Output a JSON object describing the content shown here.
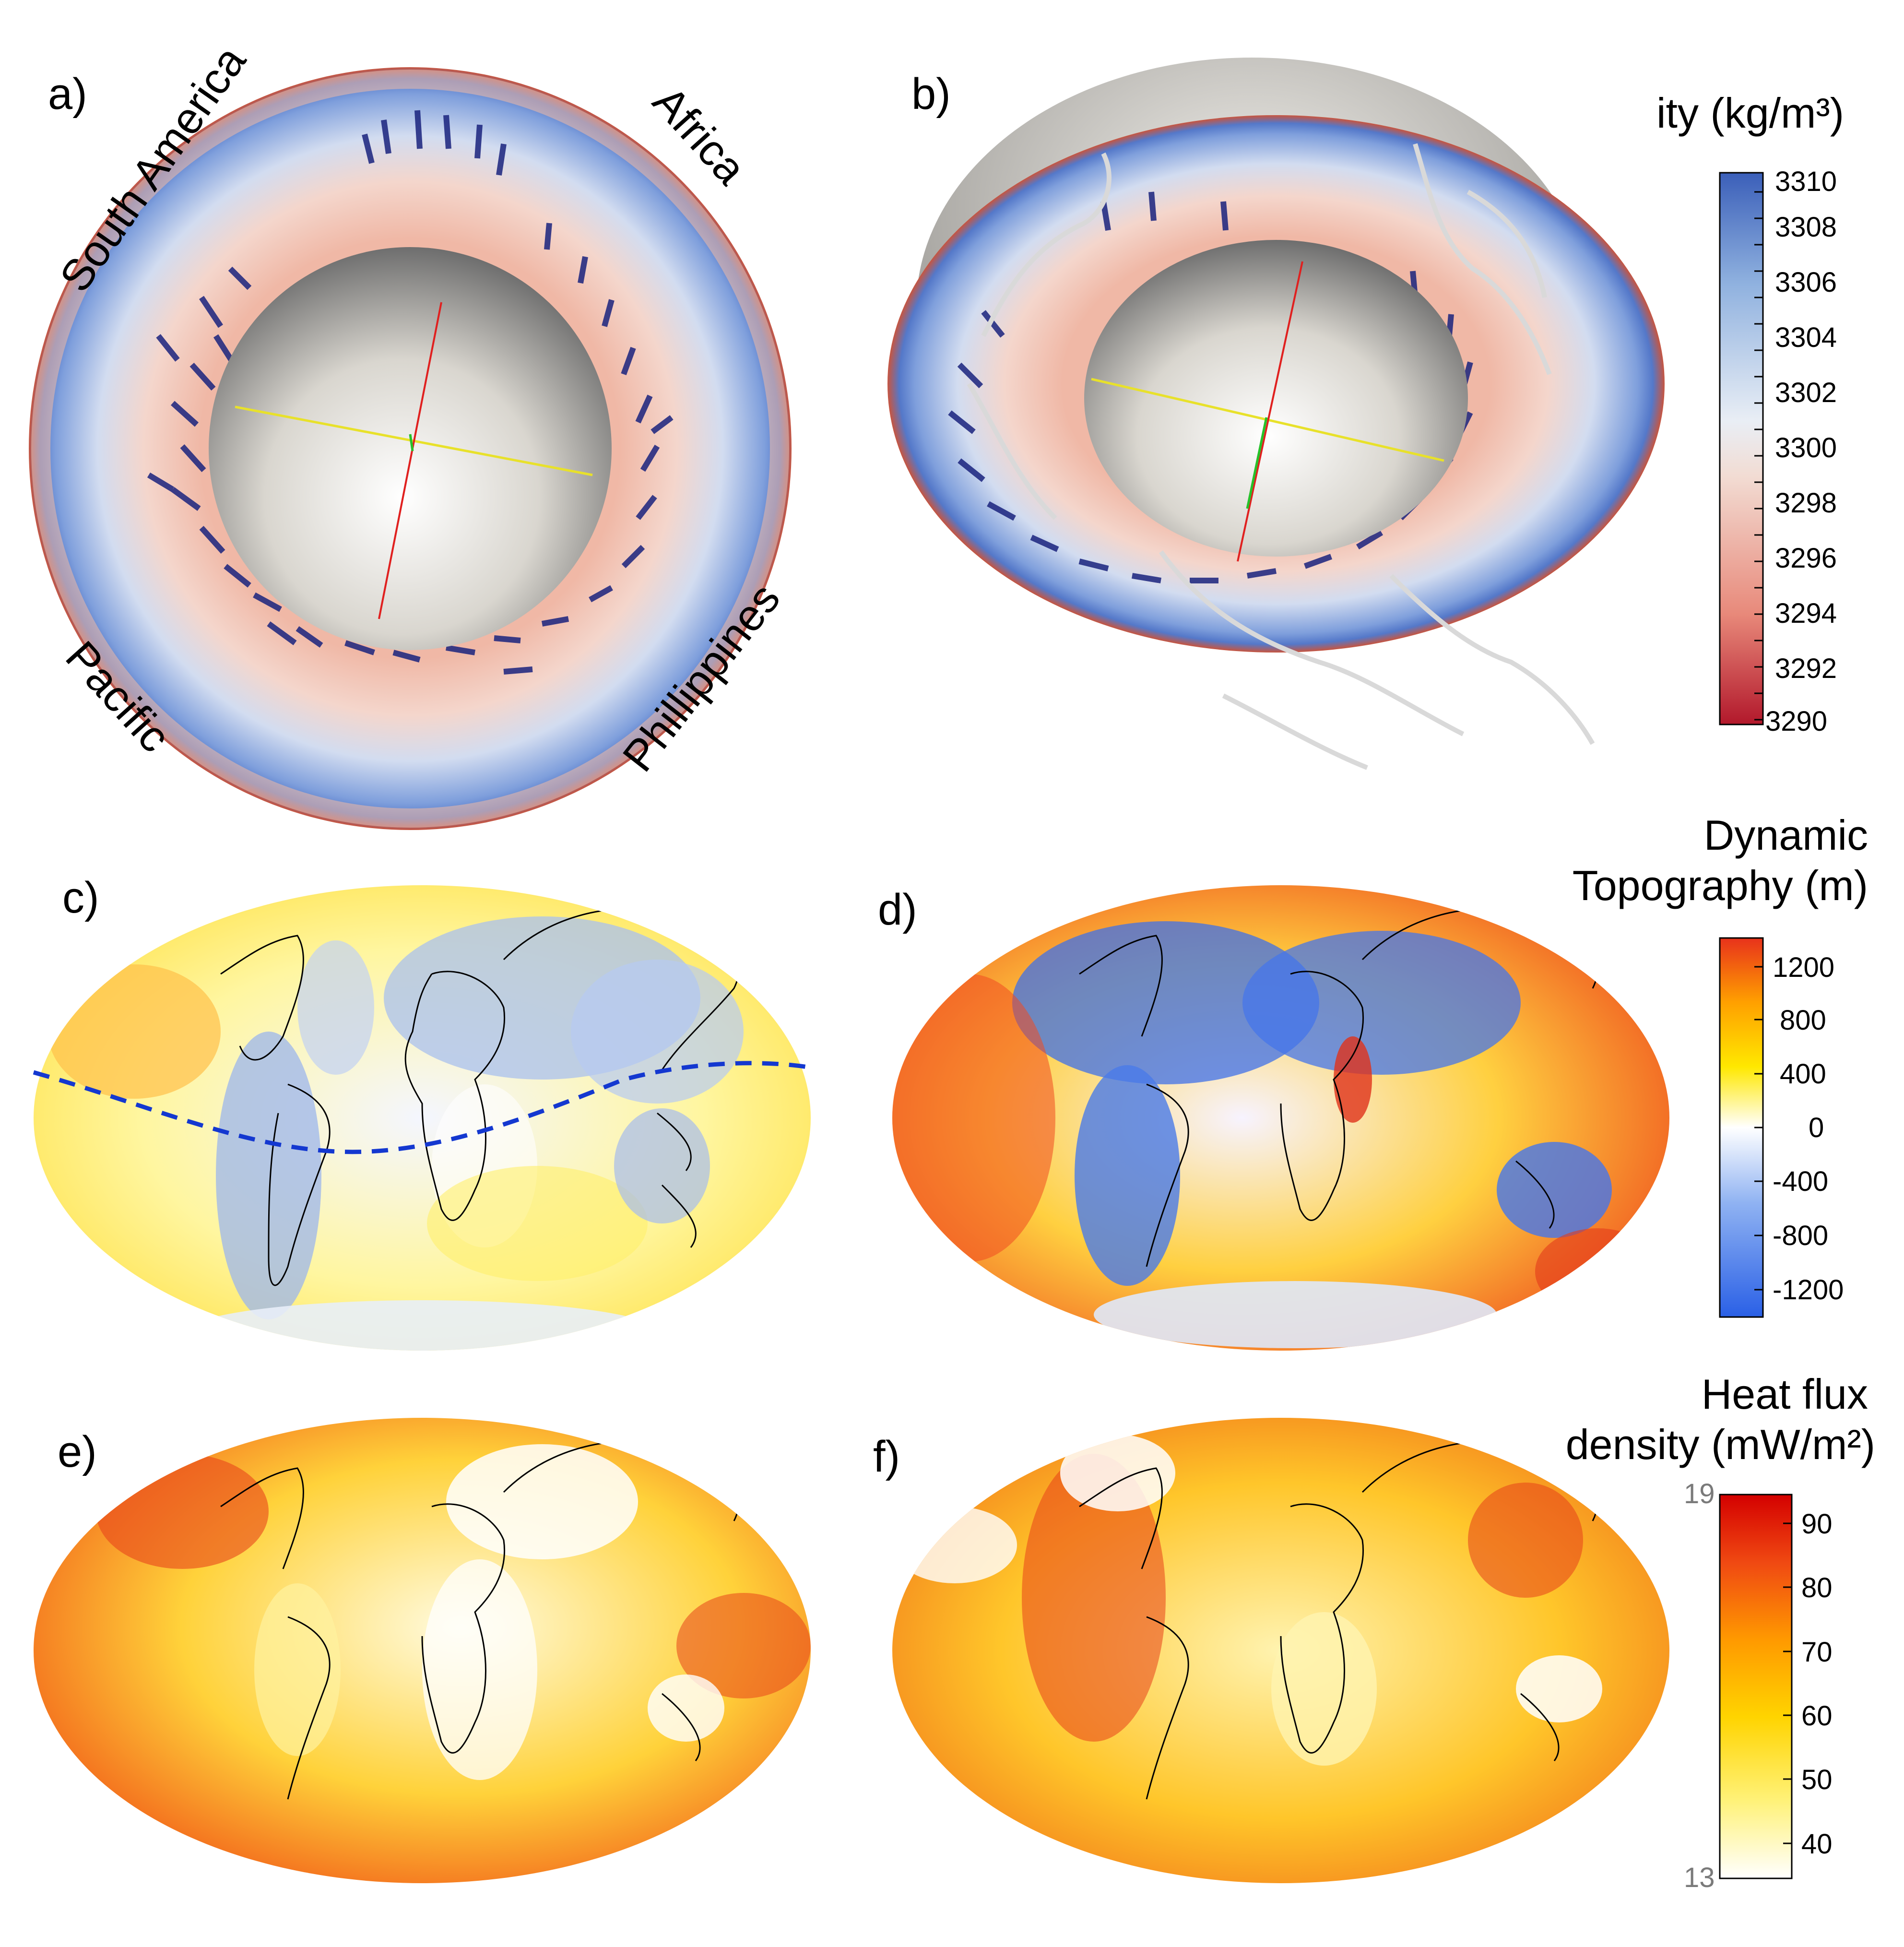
{
  "panels": {
    "a": {
      "label": "a)",
      "regions": {
        "south_america": "South America",
        "africa": "Africa",
        "pacific": "Pacific",
        "philippines": "Phillippines"
      }
    },
    "b": {
      "label": "b)"
    },
    "c": {
      "label": "c)"
    },
    "d": {
      "label": "d)"
    },
    "e": {
      "label": "e)"
    },
    "f": {
      "label": "f)"
    }
  },
  "colorbars": {
    "density": {
      "title": "ity (kg/m³)",
      "ticks": [
        "3310",
        "3308",
        "3306",
        "3304",
        "3302",
        "3300",
        "3298",
        "3296",
        "3294",
        "3292",
        "3290"
      ],
      "range": [
        3290,
        3310
      ],
      "colors": [
        "#b2182b",
        "#e8897a",
        "#f2dcd3",
        "#e9eef5",
        "#8fb1df",
        "#3b5fb9"
      ]
    },
    "topography": {
      "title_line1": "Dynamic",
      "title_line2": "Topography (m)",
      "ticks": [
        "1200",
        "800",
        "400",
        "0",
        "-400",
        "-800",
        "-1200"
      ],
      "range": [
        -1400,
        1400
      ],
      "colors": [
        "#2a60e6",
        "#8fb2f2",
        "#ffffff",
        "#ffe800",
        "#ffa000",
        "#e8321b"
      ]
    },
    "heatflux": {
      "title_line1": "Heat flux",
      "title_line2": "density (mW/m²)",
      "ticks": [
        "90",
        "80",
        "70",
        "60",
        "50",
        "40"
      ],
      "range": [
        35,
        95
      ],
      "side_top": "19",
      "side_bottom": "13",
      "colors": [
        "#ffffff",
        "#fff27a",
        "#ffd400",
        "#ff9a00",
        "#f04a12",
        "#d40000"
      ]
    }
  }
}
